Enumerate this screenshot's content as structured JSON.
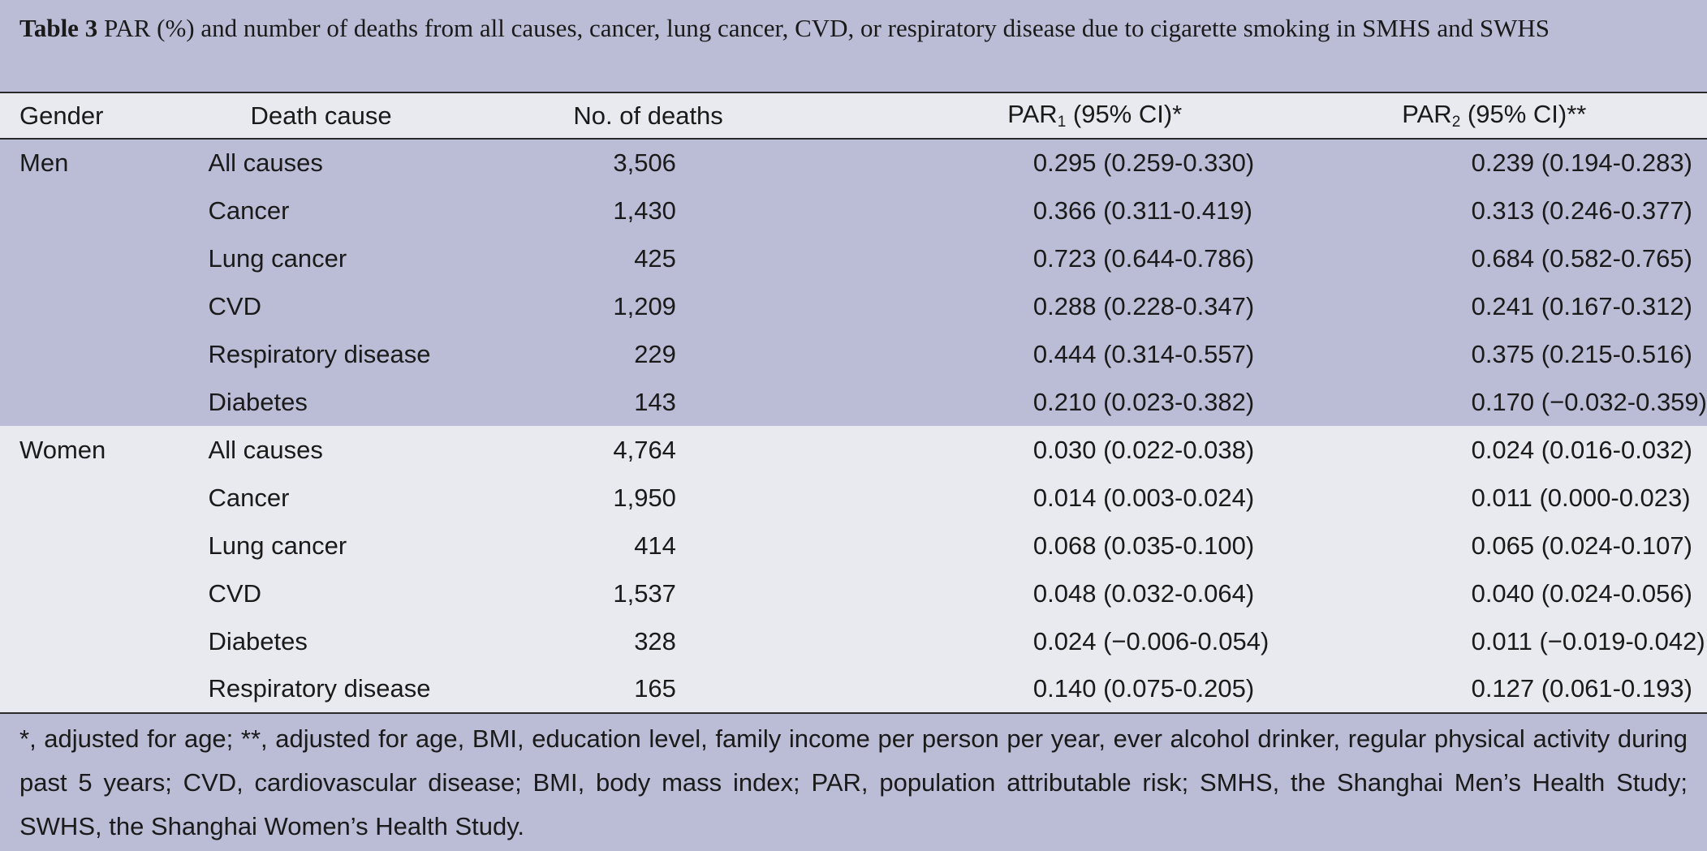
{
  "caption": {
    "label": "Table 3",
    "text": " PAR (%) and number of deaths from all causes, cancer, lung cancer, CVD, or respiratory disease due to cigarette smoking in SMHS and SWHS"
  },
  "header": {
    "gender": "Gender",
    "cause": "Death cause",
    "deaths": "No. of deaths",
    "par1_main": "PAR",
    "par1_sub": "1",
    "par1_tail": " (95% CI)*",
    "par2_main": "PAR",
    "par2_sub": "2",
    "par2_tail": " (95% CI)**"
  },
  "men": {
    "label": "Men",
    "rows": [
      {
        "cause": "All causes",
        "deaths": "3,506",
        "par1": "0.295 (0.259-0.330)",
        "par2": "0.239 (0.194-0.283)"
      },
      {
        "cause": "Cancer",
        "deaths": "1,430",
        "par1": "0.366 (0.311-0.419)",
        "par2": "0.313 (0.246-0.377)"
      },
      {
        "cause": "Lung cancer",
        "deaths": "425",
        "par1": "0.723 (0.644-0.786)",
        "par2": "0.684 (0.582-0.765)"
      },
      {
        "cause": "CVD",
        "deaths": "1,209",
        "par1": "0.288 (0.228-0.347)",
        "par2": "0.241 (0.167-0.312)"
      },
      {
        "cause": "Respiratory disease",
        "deaths": "229",
        "par1": "0.444 (0.314-0.557)",
        "par2": "0.375 (0.215-0.516)"
      },
      {
        "cause": "Diabetes",
        "deaths": "143",
        "par1": "0.210 (0.023-0.382)",
        "par2": "0.170 (−0.032-0.359)"
      }
    ]
  },
  "women": {
    "label": "Women",
    "rows": [
      {
        "cause": "All causes",
        "deaths": "4,764",
        "par1": "0.030 (0.022-0.038)",
        "par2": "0.024 (0.016-0.032)"
      },
      {
        "cause": "Cancer",
        "deaths": "1,950",
        "par1": "0.014 (0.003-0.024)",
        "par2": "0.011 (0.000-0.023)"
      },
      {
        "cause": "Lung cancer",
        "deaths": "414",
        "par1": "0.068 (0.035-0.100)",
        "par2": "0.065 (0.024-0.107)"
      },
      {
        "cause": "CVD",
        "deaths": "1,537",
        "par1": "0.048 (0.032-0.064)",
        "par2": "0.040 (0.024-0.056)"
      },
      {
        "cause": "Diabetes",
        "deaths": "328",
        "par1": "0.024 (−0.006-0.054)",
        "par2": "0.011 (−0.019-0.042)"
      },
      {
        "cause": "Respiratory disease",
        "deaths": "165",
        "par1": "0.140 (0.075-0.205)",
        "par2": "0.127 (0.061-0.193)"
      }
    ]
  },
  "footnote": "*, adjusted for age; **, adjusted for age, BMI, education level, family income per person per year, ever alcohol drinker, regular physical activity during past 5 years; CVD, cardiovascular disease; BMI, body mass index; PAR, population attributable risk; SMHS, the Shanghai Men’s Health Study; SWHS, the Shanghai Women’s Health Study.",
  "colors": {
    "band_dark": "#bbbdd6",
    "band_light": "#e9e9f0"
  }
}
